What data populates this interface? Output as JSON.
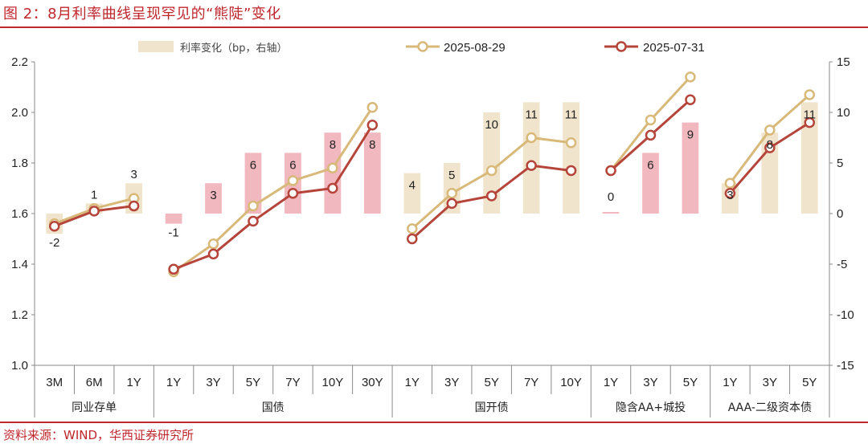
{
  "header": {
    "title": "图 2：8月利率曲线呈现罕见的“熊陡”变化"
  },
  "footer": {
    "source": "资料来源：WIND，华西证券研究所"
  },
  "colors": {
    "accent": "#c0262d",
    "line_0829": "#d8b97a",
    "line_0731": "#b5453a",
    "bar_gov_pink": "#f2b8bf",
    "bar_other_beige": "#f1e4cc"
  },
  "chart_data": {
    "type": "bar+line",
    "left_axis": {
      "ylim": [
        1.0,
        2.2
      ],
      "ticks": [
        "1.0",
        "1.2",
        "1.4",
        "1.6",
        "1.8",
        "2.0",
        "2.2"
      ]
    },
    "right_axis": {
      "ylim": [
        -15,
        15
      ],
      "ticks": [
        "-15",
        "-10",
        "-5",
        "0",
        "5",
        "10",
        "15"
      ]
    },
    "legend": {
      "position": "top",
      "bar": "利率变化（bp，右轴）",
      "line_0829": "2025-08-29",
      "line_0731": "2025-07-31"
    },
    "groups": [
      {
        "name": "同业存单",
        "categories": [
          "3M",
          "6M",
          "1Y"
        ],
        "aug29": [
          1.56,
          1.62,
          1.66
        ],
        "jul31": [
          1.55,
          1.61,
          1.63
        ],
        "change": [
          -2,
          1,
          3
        ],
        "labels": [
          "-2",
          "1",
          "3"
        ],
        "bar_color": "beige"
      },
      {
        "name": "国债",
        "categories": [
          "1Y",
          "3Y",
          "5Y",
          "7Y",
          "10Y",
          "30Y"
        ],
        "aug29": [
          1.37,
          1.48,
          1.63,
          1.73,
          1.78,
          2.02
        ],
        "jul31": [
          1.38,
          1.44,
          1.57,
          1.68,
          1.7,
          1.95
        ],
        "change": [
          -1,
          3,
          6,
          6,
          8,
          8
        ],
        "labels": [
          "-1",
          "3",
          "6",
          "6",
          "8",
          "8"
        ],
        "bar_color": "pink"
      },
      {
        "name": "国开债",
        "categories": [
          "1Y",
          "3Y",
          "5Y",
          "7Y",
          "10Y"
        ],
        "aug29": [
          1.54,
          1.68,
          1.77,
          1.9,
          1.88
        ],
        "jul31": [
          1.5,
          1.64,
          1.67,
          1.79,
          1.77
        ],
        "change": [
          4,
          5,
          10,
          11,
          11
        ],
        "labels": [
          "4",
          "5",
          "10",
          "11",
          "11"
        ],
        "bar_color": "beige"
      },
      {
        "name": "隐含AA+城投",
        "categories": [
          "1Y",
          "3Y",
          "5Y"
        ],
        "aug29": [
          1.77,
          1.97,
          2.14
        ],
        "jul31": [
          1.77,
          1.91,
          2.05
        ],
        "change": [
          0,
          6,
          9
        ],
        "labels": [
          "0",
          "6",
          "9"
        ],
        "bar_color": "pink"
      },
      {
        "name": "AAA-二级资本债",
        "categories": [
          "1Y",
          "3Y",
          "5Y"
        ],
        "aug29": [
          1.72,
          1.93,
          2.07
        ],
        "jul31": [
          1.68,
          1.86,
          1.96
        ],
        "change": [
          3,
          8,
          11
        ],
        "labels": [
          "3",
          "8",
          "11"
        ],
        "bar_color": "beige"
      }
    ]
  }
}
